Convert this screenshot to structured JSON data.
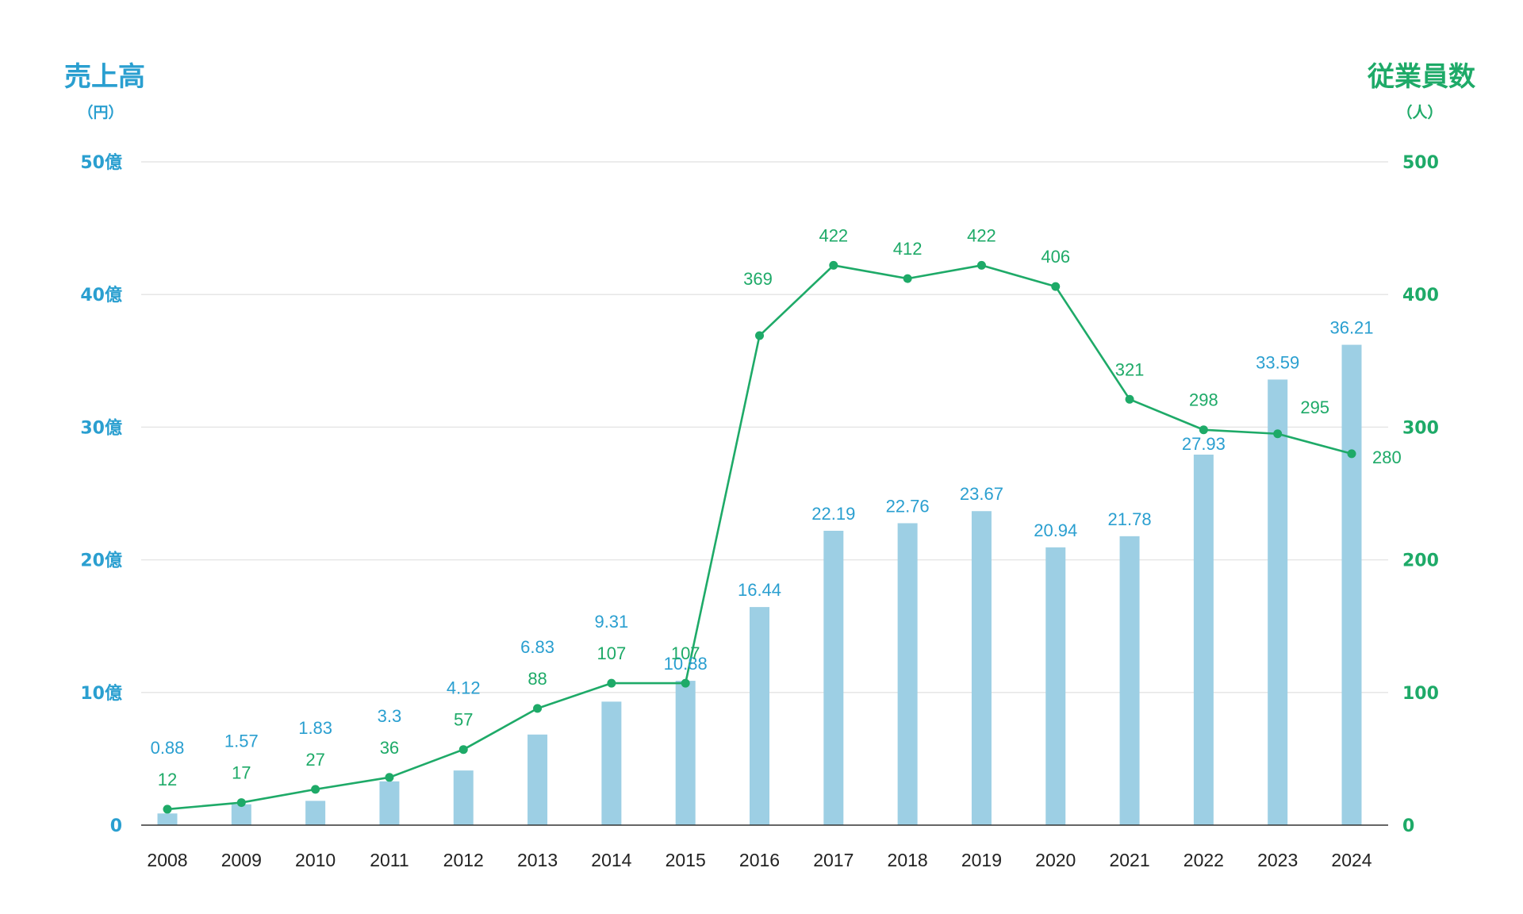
{
  "chart_data": {
    "type": "bar+line",
    "categories": [
      "2008",
      "2009",
      "2010",
      "2011",
      "2012",
      "2013",
      "2014",
      "2015",
      "2016",
      "2017",
      "2018",
      "2019",
      "2020",
      "2021",
      "2022",
      "2023",
      "2024"
    ],
    "left_axis": {
      "title": "売上高",
      "unit": "（円）",
      "ticks": [
        0,
        10,
        20,
        30,
        40,
        50
      ],
      "tick_labels": [
        "0",
        "10億",
        "20億",
        "30億",
        "40億",
        "50億"
      ],
      "range": [
        0,
        50
      ]
    },
    "right_axis": {
      "title": "従業員数",
      "unit": "（人）",
      "ticks": [
        0,
        100,
        200,
        300,
        400,
        500
      ],
      "tick_labels": [
        "0",
        "100",
        "200",
        "300",
        "400",
        "500"
      ],
      "range": [
        0,
        500
      ]
    },
    "series": [
      {
        "type": "bar",
        "axis": "left",
        "color": "#9dcfe4",
        "label_color": "#2a9fd0",
        "values": [
          0.88,
          1.57,
          1.83,
          3.3,
          4.12,
          6.83,
          9.31,
          10.88,
          16.44,
          22.19,
          22.76,
          23.67,
          20.94,
          21.78,
          27.93,
          33.59,
          36.21
        ],
        "labels": [
          "0.88",
          "1.57",
          "1.83",
          "3.3",
          "4.12",
          "6.83",
          "9.31",
          "10.88",
          "16.44",
          "22.19",
          "22.76",
          "23.67",
          "20.94",
          "21.78",
          "27.93",
          "33.59",
          "36.21"
        ]
      },
      {
        "type": "line",
        "axis": "right",
        "color": "#1eaa68",
        "values": [
          12,
          17,
          27,
          36,
          57,
          88,
          107,
          107,
          369,
          422,
          412,
          422,
          406,
          321,
          298,
          295,
          280
        ],
        "labels": [
          "12",
          "17",
          "27",
          "36",
          "57",
          "88",
          "107",
          "107",
          "369",
          "422",
          "412",
          "422",
          "406",
          "321",
          "298",
          "295",
          "280"
        ]
      }
    ],
    "grid": true,
    "colors": {
      "left_axis": "#2a9fd0",
      "right_axis": "#1eaa68",
      "grid": "#e6e6e6",
      "baseline": "#333333",
      "xtick": "#222222"
    }
  }
}
